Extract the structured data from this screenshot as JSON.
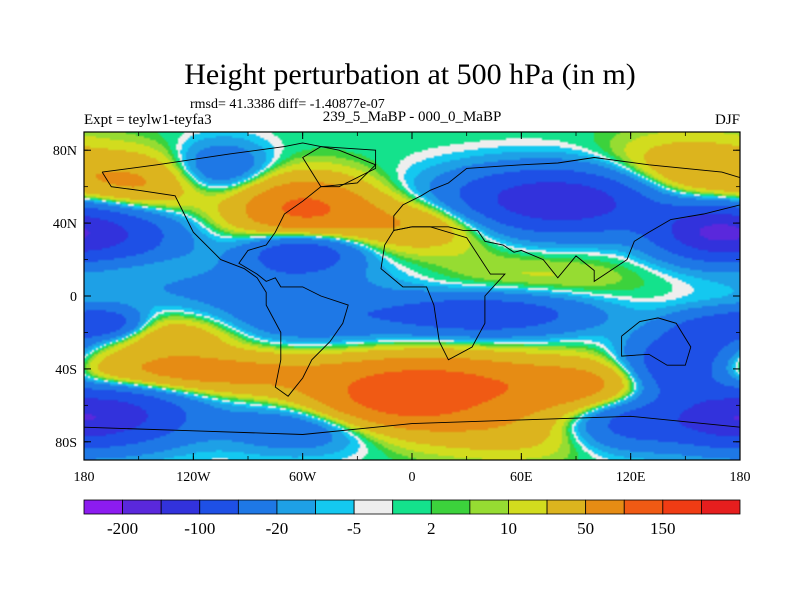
{
  "chart_data": {
    "type": "heatmap",
    "title": "Height perturbation at 500 hPa (in m)",
    "stats_text": "rmsd= 41.3386 diff= -1.40877e-07",
    "left_subtitle": "Expt = teylw1-teyfa3",
    "center_subtitle": "239_5_MaBP - 000_0_MaBP",
    "right_subtitle": "DJF",
    "x_range": [
      -180,
      180
    ],
    "y_range": [
      -90,
      90
    ],
    "x_ticks": [
      {
        "value": -180,
        "label": "180"
      },
      {
        "value": -120,
        "label": "120W"
      },
      {
        "value": -60,
        "label": "60W"
      },
      {
        "value": 0,
        "label": "0"
      },
      {
        "value": 60,
        "label": "60E"
      },
      {
        "value": 120,
        "label": "120E"
      },
      {
        "value": 180,
        "label": "180"
      }
    ],
    "y_ticks": [
      {
        "value": 80,
        "label": "80N"
      },
      {
        "value": 40,
        "label": "40N"
      },
      {
        "value": 0,
        "label": "0"
      },
      {
        "value": -40,
        "label": "40S"
      },
      {
        "value": -80,
        "label": "80S"
      }
    ],
    "colorbar": {
      "levels": [
        -200,
        -150,
        -100,
        -50,
        -20,
        -10,
        -5,
        -2,
        2,
        5,
        10,
        20,
        50,
        100,
        150,
        200
      ],
      "labels": [
        {
          "level": -200,
          "text": "-200"
        },
        {
          "level": -100,
          "text": "-100"
        },
        {
          "level": -20,
          "text": "-20"
        },
        {
          "level": -5,
          "text": "-5"
        },
        {
          "level": 2,
          "text": "2"
        },
        {
          "level": 10,
          "text": "10"
        },
        {
          "level": 50,
          "text": "50"
        },
        {
          "level": 150,
          "text": "150"
        }
      ],
      "colors": [
        "#8c1cf0",
        "#5a28dc",
        "#3232dc",
        "#1e50e6",
        "#1e78e6",
        "#1ea0e6",
        "#14c8f0",
        "#eeeeee",
        "#14e28c",
        "#3cd23c",
        "#96dc32",
        "#d2dc1e",
        "#dcb41e",
        "#e68c14",
        "#f05a14",
        "#f03c14",
        "#e61e1e"
      ]
    },
    "field": [
      {
        "lon": -150,
        "lat": 60,
        "amp": 55,
        "sx": 25,
        "sy": 12
      },
      {
        "lon": -60,
        "lat": 48,
        "amp": 110,
        "sx": 26,
        "sy": 12
      },
      {
        "lon": 5,
        "lat": 40,
        "amp": 55,
        "sx": 30,
        "sy": 10
      },
      {
        "lon": 150,
        "lat": 65,
        "amp": 55,
        "sx": 30,
        "sy": 14
      },
      {
        "lon": -170,
        "lat": 35,
        "amp": -110,
        "sx": 28,
        "sy": 12
      },
      {
        "lon": -105,
        "lat": 70,
        "amp": -50,
        "sx": 18,
        "sy": 10
      },
      {
        "lon": 80,
        "lat": 52,
        "amp": -150,
        "sx": 42,
        "sy": 12
      },
      {
        "lon": 160,
        "lat": 35,
        "amp": -90,
        "sx": 20,
        "sy": 10
      },
      {
        "lon": -60,
        "lat": 25,
        "amp": -90,
        "sx": 22,
        "sy": 8
      },
      {
        "lon": -150,
        "lat": 15,
        "amp": 20,
        "sx": 30,
        "sy": 6
      },
      {
        "lon": -90,
        "lat": 8,
        "amp": -30,
        "sx": 60,
        "sy": 10
      },
      {
        "lon": 60,
        "lat": 8,
        "amp": 14,
        "sx": 50,
        "sy": 12
      },
      {
        "lon": -170,
        "lat": -15,
        "amp": -90,
        "sx": 15,
        "sy": 6
      },
      {
        "lon": -130,
        "lat": -22,
        "amp": 40,
        "sx": 25,
        "sy": 8
      },
      {
        "lon": -60,
        "lat": -12,
        "amp": -40,
        "sx": 35,
        "sy": 10
      },
      {
        "lon": 40,
        "lat": -10,
        "amp": -90,
        "sx": 40,
        "sy": 8
      },
      {
        "lon": 160,
        "lat": -20,
        "amp": -60,
        "sx": 15,
        "sy": 8
      },
      {
        "lon": -120,
        "lat": -42,
        "amp": 70,
        "sx": 55,
        "sy": 8
      },
      {
        "lon": 10,
        "lat": -45,
        "amp": 85,
        "sx": 38,
        "sy": 10
      },
      {
        "lon": 90,
        "lat": -50,
        "amp": 70,
        "sx": 35,
        "sy": 10
      },
      {
        "lon": 145,
        "lat": -40,
        "amp": -110,
        "sx": 20,
        "sy": 12
      },
      {
        "lon": -165,
        "lat": -65,
        "amp": -120,
        "sx": 30,
        "sy": 12
      },
      {
        "lon": -60,
        "lat": -70,
        "amp": -60,
        "sx": 30,
        "sy": 10
      },
      {
        "lon": -10,
        "lat": -60,
        "amp": 110,
        "sx": 40,
        "sy": 10
      },
      {
        "lon": 60,
        "lat": -75,
        "amp": 30,
        "sx": 45,
        "sy": 10
      },
      {
        "lon": 120,
        "lat": -70,
        "amp": -80,
        "sx": 25,
        "sy": 10
      },
      {
        "lon": 170,
        "lat": -70,
        "amp": -50,
        "sx": 20,
        "sy": 10
      }
    ],
    "land_outlines": [
      [
        [
          -170,
          68
        ],
        [
          -140,
          72
        ],
        [
          -100,
          78
        ],
        [
          -70,
          82
        ],
        [
          -60,
          84
        ],
        [
          -40,
          80
        ],
        [
          -20,
          72
        ],
        [
          -30,
          62
        ],
        [
          -50,
          60
        ],
        [
          -60,
          52
        ],
        [
          -70,
          45
        ],
        [
          -75,
          35
        ],
        [
          -80,
          28
        ],
        [
          -90,
          25
        ],
        [
          -95,
          18
        ],
        [
          -85,
          12
        ],
        [
          -80,
          8
        ],
        [
          -75,
          10
        ],
        [
          -72,
          5
        ],
        [
          -60,
          5
        ],
        [
          -50,
          0
        ],
        [
          -35,
          -5
        ],
        [
          -38,
          -15
        ],
        [
          -45,
          -25
        ],
        [
          -55,
          -35
        ],
        [
          -60,
          -45
        ],
        [
          -68,
          -55
        ],
        [
          -75,
          -50
        ],
        [
          -72,
          -35
        ],
        [
          -72,
          -20
        ],
        [
          -80,
          -5
        ],
        [
          -80,
          2
        ],
        [
          -85,
          10
        ],
        [
          -92,
          15
        ],
        [
          -105,
          20
        ],
        [
          -110,
          25
        ],
        [
          -120,
          35
        ],
        [
          -125,
          45
        ],
        [
          -130,
          55
        ],
        [
          -150,
          58
        ],
        [
          -165,
          60
        ],
        [
          -170,
          68
        ]
      ],
      [
        [
          -10,
          36
        ],
        [
          0,
          38
        ],
        [
          10,
          38
        ],
        [
          30,
          32
        ],
        [
          43,
          12
        ],
        [
          51,
          12
        ],
        [
          40,
          0
        ],
        [
          40,
          -15
        ],
        [
          33,
          -28
        ],
        [
          20,
          -35
        ],
        [
          15,
          -25
        ],
        [
          12,
          -5
        ],
        [
          8,
          5
        ],
        [
          -5,
          5
        ],
        [
          -17,
          15
        ],
        [
          -15,
          28
        ],
        [
          -10,
          36
        ]
      ],
      [
        [
          -10,
          36
        ],
        [
          -10,
          44
        ],
        [
          -5,
          50
        ],
        [
          5,
          55
        ],
        [
          10,
          58
        ],
        [
          20,
          62
        ],
        [
          30,
          70
        ],
        [
          60,
          72
        ],
        [
          80,
          73
        ],
        [
          100,
          76
        ],
        [
          130,
          72
        ],
        [
          150,
          70
        ],
        [
          170,
          68
        ],
        [
          180,
          65
        ],
        [
          180,
          50
        ],
        [
          160,
          45
        ],
        [
          142,
          42
        ],
        [
          130,
          35
        ],
        [
          122,
          30
        ],
        [
          118,
          20
        ],
        [
          106,
          12
        ],
        [
          100,
          8
        ],
        [
          100,
          14
        ],
        [
          90,
          22
        ],
        [
          80,
          10
        ],
        [
          72,
          20
        ],
        [
          60,
          25
        ],
        [
          56,
          24
        ],
        [
          50,
          28
        ],
        [
          40,
          30
        ],
        [
          36,
          36
        ],
        [
          28,
          36
        ],
        [
          20,
          38
        ],
        [
          10,
          38
        ],
        [
          0,
          38
        ],
        [
          -10,
          36
        ]
      ],
      [
        [
          115,
          -22
        ],
        [
          115,
          -33
        ],
        [
          130,
          -32
        ],
        [
          140,
          -38
        ],
        [
          150,
          -38
        ],
        [
          153,
          -28
        ],
        [
          145,
          -15
        ],
        [
          135,
          -12
        ],
        [
          125,
          -14
        ],
        [
          115,
          -22
        ]
      ],
      [
        [
          -180,
          -72
        ],
        [
          -120,
          -74
        ],
        [
          -60,
          -76
        ],
        [
          0,
          -70
        ],
        [
          60,
          -68
        ],
        [
          120,
          -66
        ],
        [
          180,
          -72
        ]
      ],
      [
        [
          -50,
          60
        ],
        [
          -40,
          60
        ],
        [
          -20,
          70
        ],
        [
          -20,
          80
        ],
        [
          -50,
          82
        ],
        [
          -60,
          76
        ],
        [
          -55,
          68
        ],
        [
          -50,
          60
        ]
      ]
    ]
  }
}
